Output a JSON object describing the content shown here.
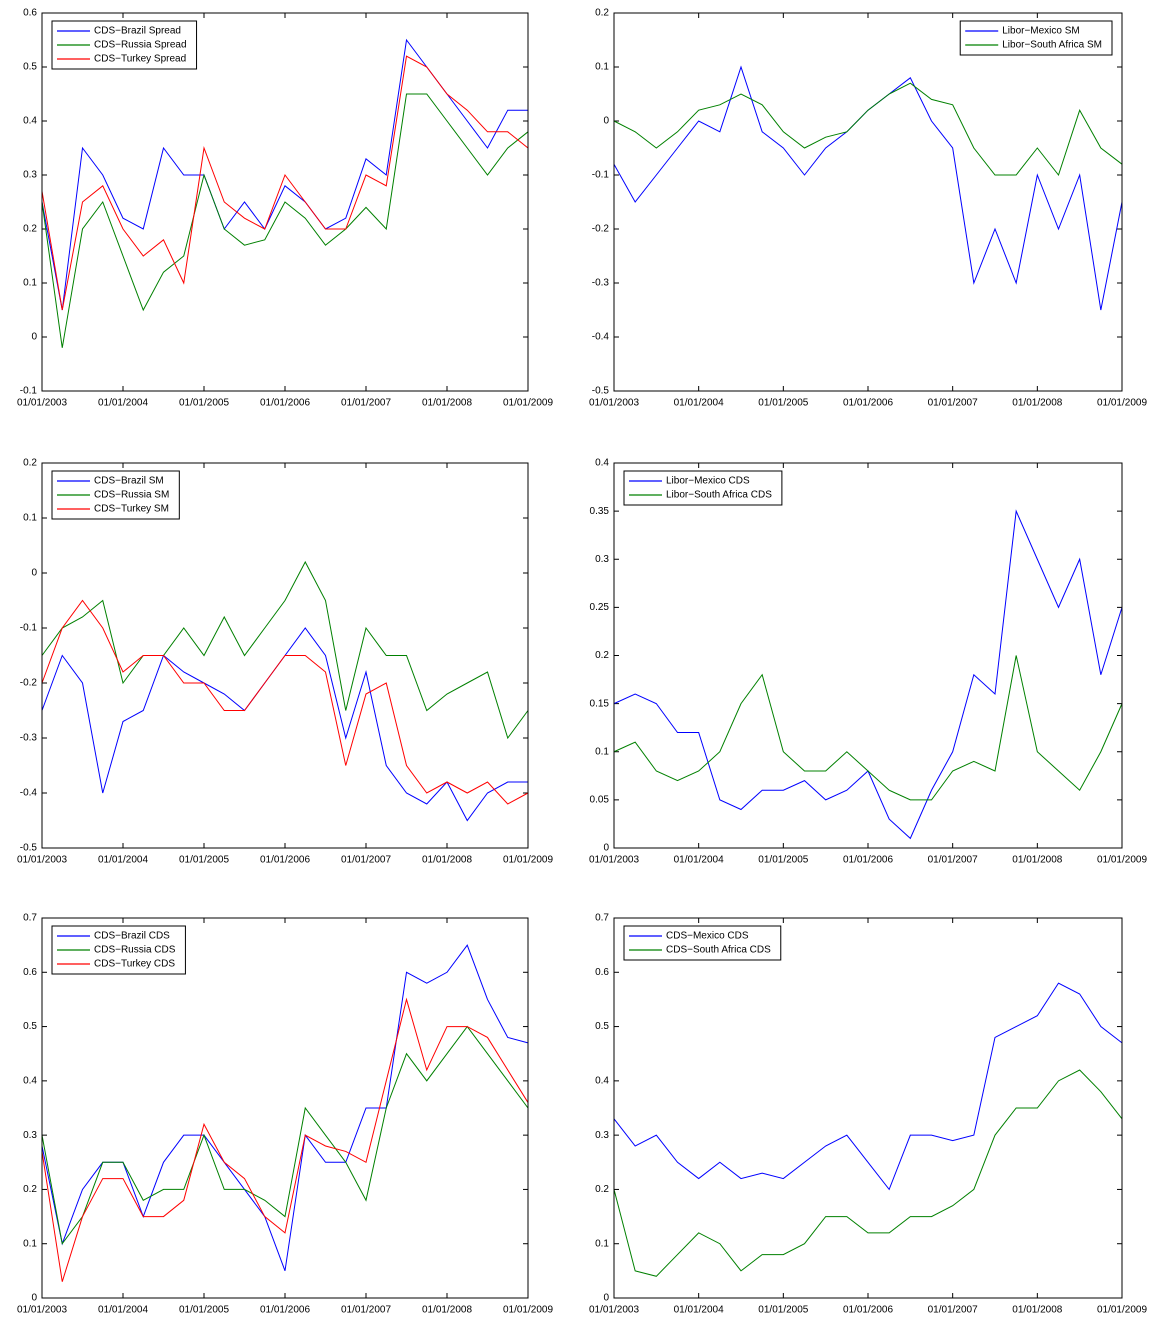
{
  "chart_data": [
    {
      "type": "line",
      "x": [
        2003,
        2003.25,
        2003.5,
        2003.75,
        2004,
        2004.25,
        2004.5,
        2004.75,
        2005,
        2005.25,
        2005.5,
        2005.75,
        2006,
        2006.25,
        2006.5,
        2006.75,
        2007,
        2007.25,
        2007.5,
        2007.75,
        2008,
        2008.25,
        2008.5,
        2008.75,
        2009
      ],
      "series": [
        {
          "name": "CDS−Brazil Spread",
          "color": "#0000ff",
          "values": [
            0.25,
            0.05,
            0.35,
            0.3,
            0.22,
            0.2,
            0.35,
            0.3,
            0.3,
            0.2,
            0.25,
            0.2,
            0.28,
            0.25,
            0.2,
            0.22,
            0.33,
            0.3,
            0.55,
            0.5,
            0.45,
            0.4,
            0.35,
            0.42,
            0.42
          ]
        },
        {
          "name": "CDS−Russia Spread",
          "color": "#008000",
          "values": [
            0.25,
            -0.02,
            0.2,
            0.25,
            0.15,
            0.05,
            0.12,
            0.15,
            0.3,
            0.2,
            0.17,
            0.18,
            0.25,
            0.22,
            0.17,
            0.2,
            0.24,
            0.2,
            0.45,
            0.45,
            0.4,
            0.35,
            0.3,
            0.35,
            0.38
          ]
        },
        {
          "name": "CDS−Turkey Spread",
          "color": "#ff0000",
          "values": [
            0.27,
            0.05,
            0.25,
            0.28,
            0.2,
            0.15,
            0.18,
            0.1,
            0.35,
            0.25,
            0.22,
            0.2,
            0.3,
            0.25,
            0.2,
            0.2,
            0.3,
            0.28,
            0.52,
            0.5,
            0.45,
            0.42,
            0.38,
            0.38,
            0.35
          ]
        }
      ],
      "xlim": [
        2003,
        2009
      ],
      "xticks": [
        {
          "value": 2003,
          "label": "01/01/2003"
        },
        {
          "value": 2004,
          "label": "01/01/2004"
        },
        {
          "value": 2005,
          "label": "01/01/2005"
        },
        {
          "value": 2006,
          "label": "01/01/2006"
        },
        {
          "value": 2007,
          "label": "01/01/2007"
        },
        {
          "value": 2008,
          "label": "01/01/2008"
        },
        {
          "value": 2009,
          "label": "01/01/2009"
        }
      ],
      "ylim": [
        -0.1,
        0.6
      ],
      "yticks": [
        -0.1,
        0,
        0.1,
        0.2,
        0.3,
        0.4,
        0.5,
        0.6
      ],
      "legend": "upper left"
    },
    {
      "type": "line",
      "x": [
        2003,
        2003.25,
        2003.5,
        2003.75,
        2004,
        2004.25,
        2004.5,
        2004.75,
        2005,
        2005.25,
        2005.5,
        2005.75,
        2006,
        2006.25,
        2006.5,
        2006.75,
        2007,
        2007.25,
        2007.5,
        2007.75,
        2008,
        2008.25,
        2008.5,
        2008.75,
        2009
      ],
      "series": [
        {
          "name": "Libor−Mexico SM",
          "color": "#0000ff",
          "values": [
            -0.08,
            -0.15,
            -0.1,
            -0.05,
            0,
            -0.02,
            0.1,
            -0.02,
            -0.05,
            -0.1,
            -0.05,
            -0.02,
            0.02,
            0.05,
            0.08,
            0,
            -0.05,
            -0.3,
            -0.2,
            -0.3,
            -0.1,
            -0.2,
            -0.1,
            -0.35,
            -0.15
          ]
        },
        {
          "name": "Libor−South Africa SM",
          "color": "#008000",
          "values": [
            0,
            -0.02,
            -0.05,
            -0.02,
            0.02,
            0.03,
            0.05,
            0.03,
            -0.02,
            -0.05,
            -0.03,
            -0.02,
            0.02,
            0.05,
            0.07,
            0.04,
            0.03,
            -0.05,
            -0.1,
            -0.1,
            -0.05,
            -0.1,
            0.02,
            -0.05,
            -0.08
          ]
        }
      ],
      "xlim": [
        2003,
        2009
      ],
      "xticks": [
        {
          "value": 2003,
          "label": "01/01/2003"
        },
        {
          "value": 2004,
          "label": "01/01/2004"
        },
        {
          "value": 2005,
          "label": "01/01/2005"
        },
        {
          "value": 2006,
          "label": "01/01/2006"
        },
        {
          "value": 2007,
          "label": "01/01/2007"
        },
        {
          "value": 2008,
          "label": "01/01/2008"
        },
        {
          "value": 2009,
          "label": "01/01/2009"
        }
      ],
      "ylim": [
        -0.5,
        0.2
      ],
      "yticks": [
        -0.5,
        -0.4,
        -0.3,
        -0.2,
        -0.1,
        0,
        0.1,
        0.2
      ],
      "legend": "upper right"
    },
    {
      "type": "line",
      "x": [
        2003,
        2003.25,
        2003.5,
        2003.75,
        2004,
        2004.25,
        2004.5,
        2004.75,
        2005,
        2005.25,
        2005.5,
        2005.75,
        2006,
        2006.25,
        2006.5,
        2006.75,
        2007,
        2007.25,
        2007.5,
        2007.75,
        2008,
        2008.25,
        2008.5,
        2008.75,
        2009
      ],
      "series": [
        {
          "name": "CDS−Brazil SM",
          "color": "#0000ff",
          "values": [
            -0.25,
            -0.15,
            -0.2,
            -0.4,
            -0.27,
            -0.25,
            -0.15,
            -0.18,
            -0.2,
            -0.22,
            -0.25,
            -0.2,
            -0.15,
            -0.1,
            -0.15,
            -0.3,
            -0.18,
            -0.35,
            -0.4,
            -0.42,
            -0.38,
            -0.45,
            -0.4,
            -0.38,
            -0.38
          ]
        },
        {
          "name": "CDS−Russia SM",
          "color": "#008000",
          "values": [
            -0.15,
            -0.1,
            -0.08,
            -0.05,
            -0.2,
            -0.15,
            -0.15,
            -0.1,
            -0.15,
            -0.08,
            -0.15,
            -0.1,
            -0.05,
            0.02,
            -0.05,
            -0.25,
            -0.1,
            -0.15,
            -0.15,
            -0.25,
            -0.22,
            -0.2,
            -0.18,
            -0.3,
            -0.25
          ]
        },
        {
          "name": "CDS−Turkey SM",
          "color": "#ff0000",
          "values": [
            -0.2,
            -0.1,
            -0.05,
            -0.1,
            -0.18,
            -0.15,
            -0.15,
            -0.2,
            -0.2,
            -0.25,
            -0.25,
            -0.2,
            -0.15,
            -0.15,
            -0.18,
            -0.35,
            -0.22,
            -0.2,
            -0.35,
            -0.4,
            -0.38,
            -0.4,
            -0.38,
            -0.42,
            -0.4
          ]
        }
      ],
      "xlim": [
        2003,
        2009
      ],
      "xticks": [
        {
          "value": 2003,
          "label": "01/01/2003"
        },
        {
          "value": 2004,
          "label": "01/01/2004"
        },
        {
          "value": 2005,
          "label": "01/01/2005"
        },
        {
          "value": 2006,
          "label": "01/01/2006"
        },
        {
          "value": 2007,
          "label": "01/01/2007"
        },
        {
          "value": 2008,
          "label": "01/01/2008"
        },
        {
          "value": 2009,
          "label": "01/01/2009"
        }
      ],
      "ylim": [
        -0.5,
        0.2
      ],
      "yticks": [
        -0.5,
        -0.4,
        -0.3,
        -0.2,
        -0.1,
        0,
        0.1,
        0.2
      ],
      "legend": "upper left"
    },
    {
      "type": "line",
      "x": [
        2003,
        2003.25,
        2003.5,
        2003.75,
        2004,
        2004.25,
        2004.5,
        2004.75,
        2005,
        2005.25,
        2005.5,
        2005.75,
        2006,
        2006.25,
        2006.5,
        2006.75,
        2007,
        2007.25,
        2007.5,
        2007.75,
        2008,
        2008.25,
        2008.5,
        2008.75,
        2009
      ],
      "series": [
        {
          "name": "Libor−Mexico CDS",
          "color": "#0000ff",
          "values": [
            0.15,
            0.16,
            0.15,
            0.12,
            0.12,
            0.05,
            0.04,
            0.06,
            0.06,
            0.07,
            0.05,
            0.06,
            0.08,
            0.03,
            0.01,
            0.06,
            0.1,
            0.18,
            0.16,
            0.35,
            0.3,
            0.25,
            0.3,
            0.18,
            0.25
          ]
        },
        {
          "name": "Libor−South Africa CDS",
          "color": "#008000",
          "values": [
            0.1,
            0.11,
            0.08,
            0.07,
            0.08,
            0.1,
            0.15,
            0.18,
            0.1,
            0.08,
            0.08,
            0.1,
            0.08,
            0.06,
            0.05,
            0.05,
            0.08,
            0.09,
            0.08,
            0.2,
            0.1,
            0.08,
            0.06,
            0.1,
            0.15
          ]
        }
      ],
      "xlim": [
        2003,
        2009
      ],
      "xticks": [
        {
          "value": 2003,
          "label": "01/01/2003"
        },
        {
          "value": 2004,
          "label": "01/01/2004"
        },
        {
          "value": 2005,
          "label": "01/01/2005"
        },
        {
          "value": 2006,
          "label": "01/01/2006"
        },
        {
          "value": 2007,
          "label": "01/01/2007"
        },
        {
          "value": 2008,
          "label": "01/01/2008"
        },
        {
          "value": 2009,
          "label": "01/01/2009"
        }
      ],
      "ylim": [
        0,
        0.4
      ],
      "yticks": [
        0,
        0.05,
        0.1,
        0.15,
        0.2,
        0.25,
        0.3,
        0.35,
        0.4
      ],
      "legend": "upper left"
    },
    {
      "type": "line",
      "x": [
        2003,
        2003.25,
        2003.5,
        2003.75,
        2004,
        2004.25,
        2004.5,
        2004.75,
        2005,
        2005.25,
        2005.5,
        2005.75,
        2006,
        2006.25,
        2006.5,
        2006.75,
        2007,
        2007.25,
        2007.5,
        2007.75,
        2008,
        2008.25,
        2008.5,
        2008.75,
        2009
      ],
      "series": [
        {
          "name": "CDS−Brazil CDS",
          "color": "#0000ff",
          "values": [
            0.28,
            0.1,
            0.2,
            0.25,
            0.25,
            0.15,
            0.25,
            0.3,
            0.3,
            0.25,
            0.2,
            0.15,
            0.05,
            0.3,
            0.25,
            0.25,
            0.35,
            0.35,
            0.6,
            0.58,
            0.6,
            0.65,
            0.55,
            0.48,
            0.47
          ]
        },
        {
          "name": "CDS−Russia CDS",
          "color": "#008000",
          "values": [
            0.3,
            0.1,
            0.15,
            0.25,
            0.25,
            0.18,
            0.2,
            0.2,
            0.3,
            0.2,
            0.2,
            0.18,
            0.15,
            0.35,
            0.3,
            0.25,
            0.18,
            0.35,
            0.45,
            0.4,
            0.45,
            0.5,
            0.45,
            0.4,
            0.35
          ]
        },
        {
          "name": "CDS−Turkey CDS",
          "color": "#ff0000",
          "values": [
            0.27,
            0.03,
            0.15,
            0.22,
            0.22,
            0.15,
            0.15,
            0.18,
            0.32,
            0.25,
            0.22,
            0.15,
            0.12,
            0.3,
            0.28,
            0.27,
            0.25,
            0.4,
            0.55,
            0.42,
            0.5,
            0.5,
            0.48,
            0.42,
            0.36
          ]
        }
      ],
      "xlim": [
        2003,
        2009
      ],
      "xticks": [
        {
          "value": 2003,
          "label": "01/01/2003"
        },
        {
          "value": 2004,
          "label": "01/01/2004"
        },
        {
          "value": 2005,
          "label": "01/01/2005"
        },
        {
          "value": 2006,
          "label": "01/01/2006"
        },
        {
          "value": 2007,
          "label": "01/01/2007"
        },
        {
          "value": 2008,
          "label": "01/01/2008"
        },
        {
          "value": 2009,
          "label": "01/01/2009"
        }
      ],
      "ylim": [
        0,
        0.7
      ],
      "yticks": [
        0,
        0.1,
        0.2,
        0.3,
        0.4,
        0.5,
        0.6,
        0.7
      ],
      "legend": "upper left"
    },
    {
      "type": "line",
      "x": [
        2003,
        2003.25,
        2003.5,
        2003.75,
        2004,
        2004.25,
        2004.5,
        2004.75,
        2005,
        2005.25,
        2005.5,
        2005.75,
        2006,
        2006.25,
        2006.5,
        2006.75,
        2007,
        2007.25,
        2007.5,
        2007.75,
        2008,
        2008.25,
        2008.5,
        2008.75,
        2009
      ],
      "series": [
        {
          "name": "CDS−Mexico CDS",
          "color": "#0000ff",
          "values": [
            0.33,
            0.28,
            0.3,
            0.25,
            0.22,
            0.25,
            0.22,
            0.23,
            0.22,
            0.25,
            0.28,
            0.3,
            0.25,
            0.2,
            0.3,
            0.3,
            0.29,
            0.3,
            0.48,
            0.5,
            0.52,
            0.58,
            0.56,
            0.5,
            0.47
          ]
        },
        {
          "name": "CDS−South Africa CDS",
          "color": "#008000",
          "values": [
            0.2,
            0.05,
            0.04,
            0.08,
            0.12,
            0.1,
            0.05,
            0.08,
            0.08,
            0.1,
            0.15,
            0.15,
            0.12,
            0.12,
            0.15,
            0.15,
            0.17,
            0.2,
            0.3,
            0.35,
            0.35,
            0.4,
            0.42,
            0.38,
            0.33
          ]
        }
      ],
      "xlim": [
        2003,
        2009
      ],
      "xticks": [
        {
          "value": 2003,
          "label": "01/01/2003"
        },
        {
          "value": 2004,
          "label": "01/01/2004"
        },
        {
          "value": 2005,
          "label": "01/01/2005"
        },
        {
          "value": 2006,
          "label": "01/01/2006"
        },
        {
          "value": 2007,
          "label": "01/01/2007"
        },
        {
          "value": 2008,
          "label": "01/01/2008"
        },
        {
          "value": 2009,
          "label": "01/01/2009"
        }
      ],
      "ylim": [
        0,
        0.7
      ],
      "yticks": [
        0,
        0.1,
        0.2,
        0.3,
        0.4,
        0.5,
        0.6,
        0.7
      ],
      "legend": "upper left"
    }
  ]
}
